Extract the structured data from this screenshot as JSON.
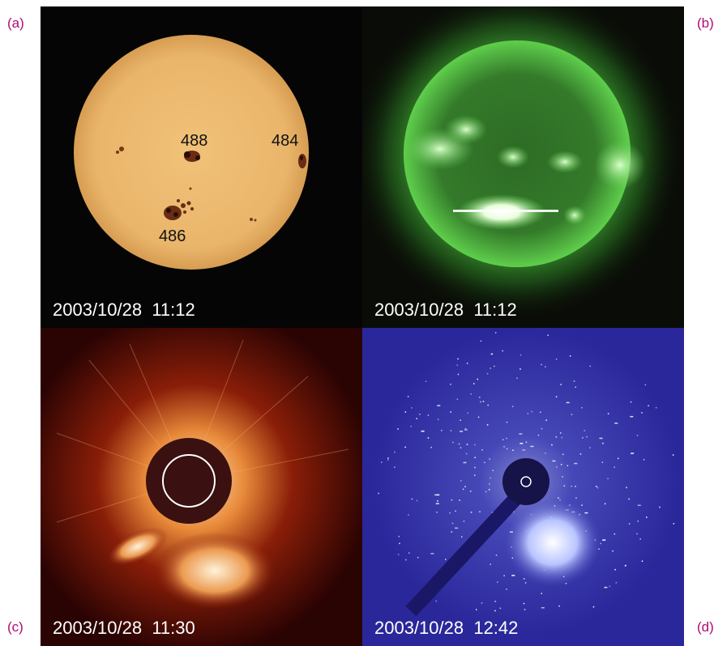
{
  "panels": [
    {
      "letter": "(a)",
      "timestamp": "2003/10/28  11:12",
      "regions": [
        "488",
        "484",
        "486"
      ]
    },
    {
      "letter": "(b)",
      "timestamp": "2003/10/28  11:12"
    },
    {
      "letter": "(c)",
      "timestamp": "2003/10/28  11:30"
    },
    {
      "letter": "(d)",
      "timestamp": "2003/10/28  12:42"
    }
  ],
  "colors": {
    "letter": "#b00a78",
    "sun_disk": "#e6b368",
    "euv_green": "#49c43a",
    "corona_red": "#c74a14",
    "corona_blue": "#2a279a"
  }
}
